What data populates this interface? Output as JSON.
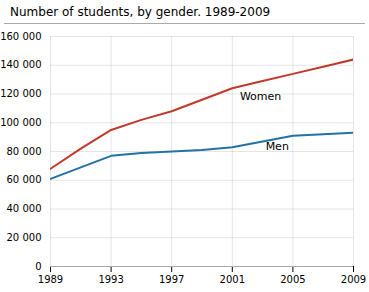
{
  "chart_data": {
    "type": "line",
    "title": "Number of students, by gender. 1989-2009",
    "x": [
      1989,
      1991,
      1993,
      1995,
      1997,
      1999,
      2001,
      2003,
      2005,
      2007,
      2009
    ],
    "series": [
      {
        "name": "Women",
        "color": "#c0392b",
        "values": [
          68000,
          82000,
          95000,
          102000,
          108000,
          116000,
          124000,
          129000,
          134000,
          139000,
          144000
        ]
      },
      {
        "name": "Men",
        "color": "#2471a3",
        "values": [
          61000,
          69000,
          77000,
          79000,
          80000,
          81000,
          83000,
          87000,
          91000,
          92000,
          93000
        ]
      }
    ],
    "annotations": [
      {
        "text": "Women",
        "x": 2001.5,
        "y": 118000
      },
      {
        "text": "Men",
        "x": 2003.2,
        "y": 83500
      }
    ],
    "xlim": [
      1989,
      2009
    ],
    "xticks": [
      1989,
      1993,
      1997,
      2001,
      2005,
      2009
    ],
    "ylim": [
      0,
      160000
    ],
    "yticks": [
      0,
      {
        "value": 20000,
        "label": "20 000"
      },
      {
        "value": 40000,
        "label": "40 000"
      },
      {
        "value": 60000,
        "label": "60 000"
      },
      {
        "value": 80000,
        "label": "80 000"
      },
      {
        "value": 100000,
        "label": "100 000"
      },
      {
        "value": 120000,
        "label": "120 000"
      },
      {
        "value": 140000,
        "label": "140 000"
      },
      {
        "value": 160000,
        "label": "160 000"
      }
    ],
    "grid": true
  }
}
